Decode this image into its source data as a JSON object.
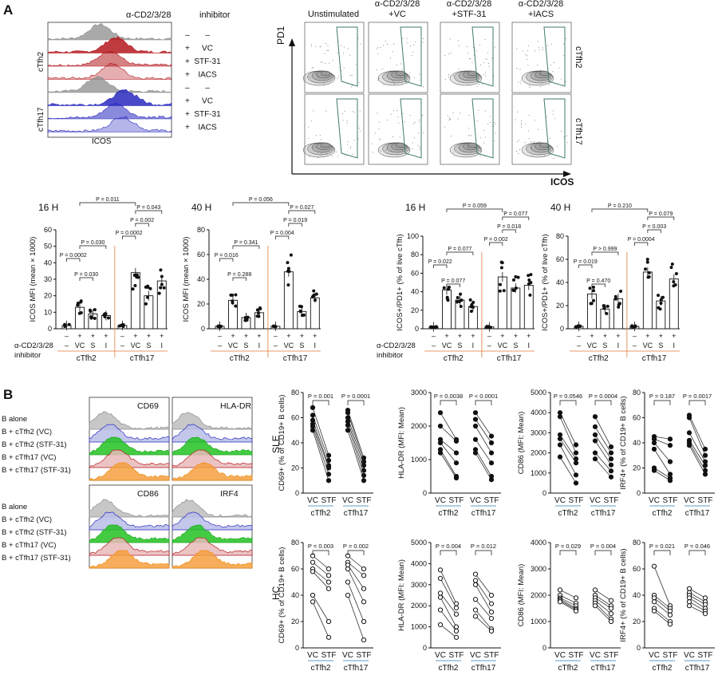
{
  "panel_a": {
    "letter": "A",
    "hist": {
      "header_stim": "α-CD2/3/28",
      "header_inh": "inhibitor",
      "rows": [
        {
          "stim": "–",
          "inh": "–"
        },
        {
          "stim": "+",
          "inh": "VC"
        },
        {
          "stim": "+",
          "inh": "STF-31"
        },
        {
          "stim": "+",
          "inh": "IACS"
        },
        {
          "stim": "–",
          "inh": "–"
        },
        {
          "stim": "+",
          "inh": "VC"
        },
        {
          "stim": "+",
          "inh": "STF-31"
        },
        {
          "stim": "+",
          "inh": "IACS"
        }
      ],
      "group_top": "cTfh2",
      "group_bottom": "cTfh17",
      "xlabel": "ICOS",
      "colors": {
        "grey": "#8c8c8c",
        "red": "#b5191f",
        "blue": "#2a2ac0"
      }
    },
    "flow": {
      "cols": [
        "Unstimulated",
        "α-CD2/3/28\n+VC",
        "α-CD2/3/28\n+STF-31",
        "α-CD2/3/28\n+IACS"
      ],
      "rows": [
        "cTfh2",
        "cTfh17"
      ],
      "ylabel": "PD1",
      "xlabel": "ICOS"
    },
    "bottom_labels": {
      "stim": "α-CD2/3/28",
      "inh": "inhibitor",
      "stim_signs": [
        "–",
        "+",
        "+",
        "+",
        "–",
        "+",
        "+",
        "+"
      ],
      "inh_signs": [
        "–",
        "VC",
        "S",
        "I",
        "–",
        "VC",
        "S",
        "I"
      ],
      "groups": [
        "cTfh2",
        "cTfh17"
      ]
    }
  },
  "panel_b": {
    "letter": "B",
    "hist_rows": [
      "B alone",
      "B + cTfh2 (VC)",
      "B + cTfh2 (STF-31)",
      "B + cTfh17 (VC)",
      "B + cTfh17 (STF-31)"
    ],
    "hist_markers": [
      "CD69",
      "HLA-DR",
      "CD86",
      "IRF4"
    ],
    "row_labels": [
      "SLE",
      "HC"
    ],
    "x_labels": [
      "VC",
      "STF"
    ],
    "groups": [
      "cTfh2",
      "cTfh17"
    ]
  },
  "chart_data": [
    {
      "type": "bar",
      "title": "16 H",
      "ylabel": "ICOS MFI (mean × 1000)",
      "ylim": [
        0,
        60
      ],
      "yticks": [
        0,
        10,
        20,
        30,
        40,
        50,
        60
      ],
      "categories": [
        "cTfh2 –",
        "cTfh2 VC",
        "cTfh2 S",
        "cTfh2 I",
        "cTfh17 –",
        "cTfh17 VC",
        "cTfh17 S",
        "cTfh17 I"
      ],
      "values": [
        2,
        13,
        9,
        8,
        2,
        34,
        20,
        29
      ],
      "pvalues": [
        {
          "from": 0,
          "to": 1,
          "text": "P = 0.0002"
        },
        {
          "from": 1,
          "to": 2,
          "text": "P = 0.030"
        },
        {
          "from": 1,
          "to": 3,
          "text": "P = 0.030"
        },
        {
          "from": 1,
          "to": 5,
          "text": "P = 0.011"
        },
        {
          "from": 4,
          "to": 5,
          "text": "P = 0.0002"
        },
        {
          "from": 5,
          "to": 6,
          "text": "P = 0.002"
        },
        {
          "from": 5,
          "to": 7,
          "text": "P = 0.043"
        }
      ]
    },
    {
      "type": "bar",
      "title": "40 H",
      "ylabel": "ICOS MFI (mean × 1000)",
      "ylim": [
        0,
        80
      ],
      "yticks": [
        0,
        20,
        40,
        60,
        80
      ],
      "categories": [
        "cTfh2 –",
        "cTfh2 VC",
        "cTfh2 S",
        "cTfh2 I",
        "cTfh17 –",
        "cTfh17 VC",
        "cTfh17 S",
        "cTfh17 I"
      ],
      "values": [
        2,
        23,
        9,
        13,
        2,
        46,
        14,
        25
      ],
      "pvalues": [
        {
          "from": 0,
          "to": 1,
          "text": "P = 0.016"
        },
        {
          "from": 1,
          "to": 2,
          "text": "P = 0.288"
        },
        {
          "from": 1,
          "to": 3,
          "text": "P = 0.341"
        },
        {
          "from": 1,
          "to": 5,
          "text": "P = 0.056"
        },
        {
          "from": 4,
          "to": 5,
          "text": "P = 0.004"
        },
        {
          "from": 5,
          "to": 6,
          "text": "P = 0.019"
        },
        {
          "from": 5,
          "to": 7,
          "text": "P = 0.027"
        }
      ]
    },
    {
      "type": "bar",
      "title": "16 H",
      "ylabel": "ICOS+/PD1+ (% of live cTfh)",
      "ylim": [
        0,
        100
      ],
      "yticks": [
        0,
        20,
        40,
        60,
        80,
        100
      ],
      "categories": [
        "cTfh2 –",
        "cTfh2 VC",
        "cTfh2 S",
        "cTfh2 I",
        "cTfh17 –",
        "cTfh17 VC",
        "cTfh17 S",
        "cTfh17 I"
      ],
      "values": [
        2,
        42,
        31,
        24,
        2,
        56,
        44,
        47
      ],
      "pvalues": [
        {
          "from": 0,
          "to": 1,
          "text": "P = 0.022"
        },
        {
          "from": 1,
          "to": 2,
          "text": "P = 0.077"
        },
        {
          "from": 1,
          "to": 3,
          "text": "P = 0.077"
        },
        {
          "from": 1,
          "to": 5,
          "text": "P = 0.059"
        },
        {
          "from": 4,
          "to": 5,
          "text": "P = 0.002"
        },
        {
          "from": 5,
          "to": 6,
          "text": "P = 0.018"
        },
        {
          "from": 5,
          "to": 7,
          "text": "P = 0.077"
        }
      ]
    },
    {
      "type": "bar",
      "title": "40 H",
      "ylabel": "ICOS+/PD1+ (% of live cTfh)",
      "ylim": [
        0,
        80
      ],
      "yticks": [
        0,
        20,
        40,
        60,
        80
      ],
      "categories": [
        "cTfh2 –",
        "cTfh2 VC",
        "cTfh2 S",
        "cTfh2 I",
        "cTfh17 –",
        "cTfh17 VC",
        "cTfh17 S",
        "cTfh17 I"
      ],
      "values": [
        2,
        30,
        17,
        26,
        2,
        49,
        24,
        43
      ],
      "pvalues": [
        {
          "from": 0,
          "to": 1,
          "text": "P = 0.019"
        },
        {
          "from": 1,
          "to": 2,
          "text": "P = 0.470"
        },
        {
          "from": 1,
          "to": 3,
          "text": "P > 0.999"
        },
        {
          "from": 1,
          "to": 5,
          "text": "P = 0.210"
        },
        {
          "from": 4,
          "to": 5,
          "text": "P = 0.0004"
        },
        {
          "from": 5,
          "to": 6,
          "text": "P = 0.003"
        },
        {
          "from": 5,
          "to": 7,
          "text": "P = 0.079"
        }
      ]
    },
    {
      "type": "scatter",
      "row": "SLE",
      "ylabel": "CD69+ (% of CD19+ B cells)",
      "ylim": [
        0,
        80
      ],
      "yticks": [
        0,
        20,
        40,
        60,
        80
      ],
      "filled": true,
      "series": [
        {
          "vc": [
            68,
            62,
            58,
            55,
            53,
            50
          ],
          "stf": [
            30,
            26,
            22,
            20,
            15,
            10
          ],
          "p": "P = 0.001"
        },
        {
          "vc": [
            66,
            64,
            60,
            57,
            54,
            50
          ],
          "stf": [
            28,
            25,
            22,
            18,
            14,
            10
          ],
          "p": "P = 0.0001"
        }
      ]
    },
    {
      "type": "scatter",
      "row": "SLE",
      "ylabel": "HLA-DR (MFI: Mean)",
      "ylim": [
        0,
        3000
      ],
      "yticks": [
        0,
        1000,
        2000,
        3000
      ],
      "filled": true,
      "series": [
        {
          "vc": [
            2400,
            2000,
            1600,
            1500,
            1300,
            1200
          ],
          "stf": [
            1600,
            1550,
            1200,
            900,
            500,
            450
          ],
          "p": "P = 0.0038"
        },
        {
          "vc": [
            2400,
            2200,
            2000,
            1600,
            1300,
            1200
          ],
          "stf": [
            1700,
            1500,
            1200,
            900,
            500,
            400
          ],
          "p": "P < 0.0001"
        }
      ]
    },
    {
      "type": "scatter",
      "row": "SLE",
      "ylabel": "CD86 (MFI: Mean)",
      "ylim": [
        0,
        5000
      ],
      "yticks": [
        0,
        1000,
        2000,
        3000,
        4000,
        5000
      ],
      "filled": true,
      "series": [
        {
          "vc": [
            4000,
            3800,
            2900,
            2700,
            2400,
            1800
          ],
          "stf": [
            2400,
            2000,
            1700,
            1500,
            900,
            500
          ],
          "p": "P = 0.0546"
        },
        {
          "vc": [
            3800,
            3300,
            2900,
            2600,
            2000,
            1700
          ],
          "stf": [
            2300,
            2000,
            1700,
            1400,
            1100,
            800
          ],
          "p": "P = 0.0004"
        }
      ]
    },
    {
      "type": "scatter",
      "row": "SLE",
      "ylabel": "IRF4+ (% of CD19+ B cells)",
      "ylim": [
        0,
        80
      ],
      "yticks": [
        0,
        20,
        40,
        60,
        80
      ],
      "filled": true,
      "series": [
        {
          "vc": [
            45,
            43,
            40,
            35,
            20,
            18
          ],
          "stf": [
            43,
            38,
            25,
            15,
            12,
            10
          ],
          "p": "P = 0.187"
        },
        {
          "vc": [
            62,
            60,
            48,
            42,
            40,
            38
          ],
          "stf": [
            35,
            30,
            25,
            22,
            18,
            15
          ],
          "p": "P = 0.0017"
        }
      ]
    },
    {
      "type": "scatter",
      "row": "HC",
      "ylabel": "CD69+ (% of CD19+ B cells)",
      "ylim": [
        0,
        80
      ],
      "yticks": [
        0,
        20,
        40,
        60,
        80
      ],
      "filled": false,
      "series": [
        {
          "vc": [
            70,
            65,
            60,
            58,
            40,
            35
          ],
          "stf": [
            60,
            55,
            50,
            45,
            20,
            8
          ],
          "p": "P = 0.003"
        },
        {
          "vc": [
            70,
            65,
            63,
            60,
            50,
            40
          ],
          "stf": [
            60,
            55,
            45,
            35,
            20,
            6
          ],
          "p": "P = 0.002"
        }
      ]
    },
    {
      "type": "scatter",
      "row": "HC",
      "ylabel": "HLA-DR (MFI: Mean)",
      "ylim": [
        0,
        5000
      ],
      "yticks": [
        0,
        1000,
        2000,
        3000,
        4000,
        5000
      ],
      "filled": false,
      "series": [
        {
          "vc": [
            3700,
            3300,
            2600,
            2400,
            1800,
            1100
          ],
          "stf": [
            2100,
            1900,
            1600,
            1000,
            800,
            500
          ],
          "p": "P = 0.004"
        },
        {
          "vc": [
            3500,
            3200,
            3000,
            2300,
            1800,
            1500
          ],
          "stf": [
            2500,
            2100,
            1700,
            1400,
            900,
            800
          ],
          "p": "P = 0.012"
        }
      ]
    },
    {
      "type": "scatter",
      "row": "HC",
      "ylabel": "CD86 (MFI: Mean)",
      "ylim": [
        0,
        4000
      ],
      "yticks": [
        0,
        1000,
        2000,
        3000,
        4000
      ],
      "filled": false,
      "series": [
        {
          "vc": [
            2200,
            2000,
            1900,
            1850,
            1800,
            1750
          ],
          "stf": [
            1900,
            1700,
            1600,
            1500,
            1450,
            1400
          ],
          "p": "P = 0.029"
        },
        {
          "vc": [
            2200,
            2000,
            1900,
            1800,
            1700,
            1600
          ],
          "stf": [
            1800,
            1600,
            1500,
            1300,
            1100,
            1000
          ],
          "p": "P = 0.004"
        }
      ]
    },
    {
      "type": "scatter",
      "row": "HC",
      "ylabel": "IRF4+ (% of CD19+ B cells)",
      "ylim": [
        0,
        80
      ],
      "yticks": [
        0,
        20,
        40,
        60,
        80
      ],
      "filled": false,
      "series": [
        {
          "vc": [
            62,
            40,
            38,
            35,
            30,
            28
          ],
          "stf": [
            32,
            30,
            28,
            25,
            20,
            18
          ],
          "p": "P = 0.021"
        },
        {
          "vc": [
            45,
            42,
            40,
            38,
            35,
            32
          ],
          "stf": [
            38,
            35,
            33,
            30,
            28,
            26
          ],
          "p": "P = 0.046"
        }
      ]
    }
  ]
}
